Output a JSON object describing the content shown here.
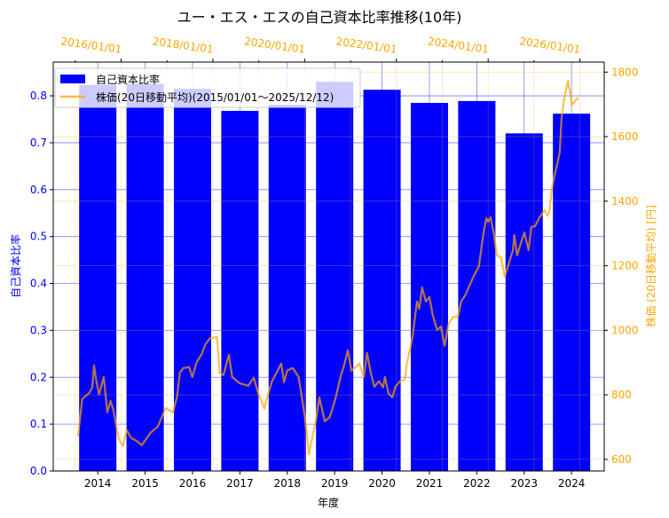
{
  "chart_data": {
    "type": "bar+line",
    "title": "ユー・エス・エスの自己資本比率推移(10年)",
    "xlabel": "年度",
    "ylabel_left": "自己資本比率",
    "ylabel_right": "株価 (20日移動平均) [円]",
    "categories": [
      "2014",
      "2015",
      "2016",
      "2017",
      "2018",
      "2019",
      "2020",
      "2021",
      "2022",
      "2023",
      "2024"
    ],
    "ylim_left": [
      0,
      0.872
    ],
    "yticks_left": [
      "0.0",
      "0.1",
      "0.2",
      "0.3",
      "0.4",
      "0.5",
      "0.6",
      "0.7",
      "0.8"
    ],
    "ylim_right": [
      564,
      1831
    ],
    "yticks_right": [
      "600",
      "800",
      "1000",
      "1200",
      "1400",
      "1600",
      "1800"
    ],
    "top_axis_ticks": [
      "2016/01/01",
      "2018/01/01",
      "2020/01/01",
      "2022/01/01",
      "2024/01/01",
      "2026/01/01"
    ],
    "legend_placement": "top-left",
    "grid": true,
    "series": [
      {
        "name": "自己資本比率",
        "kind": "bar",
        "color": "#0000ff",
        "values": [
          0.823,
          0.826,
          0.815,
          0.768,
          0.781,
          0.83,
          0.813,
          0.785,
          0.789,
          0.72,
          0.762
        ]
      },
      {
        "name": "株価(20日移動平均)(2015/01/01～2025/12/12)",
        "kind": "line",
        "color": "#ffa500",
        "points": [
          [
            2015.06,
            671
          ],
          [
            2015.15,
            787
          ],
          [
            2015.31,
            806
          ],
          [
            2015.37,
            823
          ],
          [
            2015.41,
            891
          ],
          [
            2015.46,
            842
          ],
          [
            2015.52,
            801
          ],
          [
            2015.62,
            855
          ],
          [
            2015.7,
            746
          ],
          [
            2015.77,
            781
          ],
          [
            2015.83,
            754
          ],
          [
            2015.95,
            663
          ],
          [
            2016.04,
            641
          ],
          [
            2016.12,
            691
          ],
          [
            2016.22,
            666
          ],
          [
            2016.33,
            658
          ],
          [
            2016.45,
            644
          ],
          [
            2016.64,
            682
          ],
          [
            2016.8,
            702
          ],
          [
            2016.97,
            759
          ],
          [
            2017.13,
            746
          ],
          [
            2017.22,
            795
          ],
          [
            2017.28,
            869
          ],
          [
            2017.36,
            883
          ],
          [
            2017.48,
            886
          ],
          [
            2017.55,
            855
          ],
          [
            2017.65,
            902
          ],
          [
            2017.75,
            924
          ],
          [
            2017.84,
            957
          ],
          [
            2017.94,
            976
          ],
          [
            2018.09,
            979
          ],
          [
            2018.15,
            866
          ],
          [
            2018.23,
            861
          ],
          [
            2018.35,
            924
          ],
          [
            2018.42,
            855
          ],
          [
            2018.58,
            836
          ],
          [
            2018.77,
            828
          ],
          [
            2018.89,
            853
          ],
          [
            2018.98,
            809
          ],
          [
            2019.12,
            757
          ],
          [
            2019.2,
            801
          ],
          [
            2019.29,
            842
          ],
          [
            2019.39,
            869
          ],
          [
            2019.49,
            897
          ],
          [
            2019.55,
            839
          ],
          [
            2019.62,
            875
          ],
          [
            2019.74,
            883
          ],
          [
            2019.87,
            855
          ],
          [
            2019.99,
            746
          ],
          [
            2020.05,
            682
          ],
          [
            2020.09,
            616
          ],
          [
            2020.16,
            663
          ],
          [
            2020.26,
            732
          ],
          [
            2020.32,
            792
          ],
          [
            2020.44,
            718
          ],
          [
            2020.55,
            732
          ],
          [
            2020.67,
            787
          ],
          [
            2020.78,
            855
          ],
          [
            2020.86,
            891
          ],
          [
            2020.94,
            938
          ],
          [
            2021.02,
            875
          ],
          [
            2021.13,
            888
          ],
          [
            2021.19,
            897
          ],
          [
            2021.29,
            855
          ],
          [
            2021.36,
            930
          ],
          [
            2021.44,
            869
          ],
          [
            2021.52,
            825
          ],
          [
            2021.62,
            842
          ],
          [
            2021.71,
            823
          ],
          [
            2021.75,
            855
          ],
          [
            2021.83,
            803
          ],
          [
            2021.91,
            792
          ],
          [
            2021.98,
            825
          ],
          [
            2022.08,
            842
          ],
          [
            2022.18,
            847
          ],
          [
            2022.23,
            897
          ],
          [
            2022.35,
            979
          ],
          [
            2022.45,
            1089
          ],
          [
            2022.5,
            1067
          ],
          [
            2022.56,
            1133
          ],
          [
            2022.64,
            1089
          ],
          [
            2022.72,
            1103
          ],
          [
            2022.79,
            1048
          ],
          [
            2022.89,
            1001
          ],
          [
            2022.97,
            1012
          ],
          [
            2023.05,
            952
          ],
          [
            2023.14,
            1020
          ],
          [
            2023.24,
            1042
          ],
          [
            2023.34,
            1042
          ],
          [
            2023.41,
            1089
          ],
          [
            2023.51,
            1111
          ],
          [
            2023.61,
            1144
          ],
          [
            2023.68,
            1166
          ],
          [
            2023.8,
            1199
          ],
          [
            2023.9,
            1303
          ],
          [
            2023.96,
            1347
          ],
          [
            2024.0,
            1336
          ],
          [
            2024.05,
            1350
          ],
          [
            2024.13,
            1295
          ],
          [
            2024.19,
            1232
          ],
          [
            2024.28,
            1226
          ],
          [
            2024.36,
            1166
          ],
          [
            2024.42,
            1193
          ],
          [
            2024.54,
            1248
          ],
          [
            2024.57,
            1295
          ],
          [
            2024.63,
            1232
          ],
          [
            2024.71,
            1268
          ],
          [
            2024.79,
            1303
          ],
          [
            2024.88,
            1248
          ],
          [
            2024.94,
            1320
          ],
          [
            2025.02,
            1322
          ],
          [
            2025.12,
            1350
          ],
          [
            2025.23,
            1372
          ],
          [
            2025.29,
            1355
          ],
          [
            2025.33,
            1364
          ],
          [
            2025.39,
            1441
          ],
          [
            2025.46,
            1487
          ],
          [
            2025.56,
            1550
          ],
          [
            2025.6,
            1658
          ],
          [
            2025.66,
            1721
          ],
          [
            2025.74,
            1773
          ],
          [
            2025.83,
            1699
          ],
          [
            2025.91,
            1713
          ],
          [
            2025.97,
            1721
          ]
        ]
      }
    ]
  }
}
